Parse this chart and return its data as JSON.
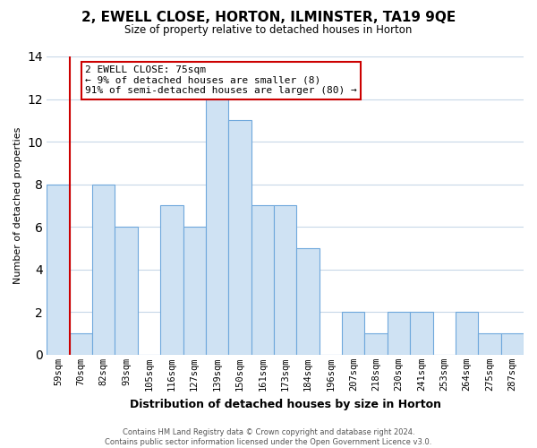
{
  "title": "2, EWELL CLOSE, HORTON, ILMINSTER, TA19 9QE",
  "subtitle": "Size of property relative to detached houses in Horton",
  "xlabel": "Distribution of detached houses by size in Horton",
  "ylabel": "Number of detached properties",
  "categories": [
    "59sqm",
    "70sqm",
    "82sqm",
    "93sqm",
    "105sqm",
    "116sqm",
    "127sqm",
    "139sqm",
    "150sqm",
    "161sqm",
    "173sqm",
    "184sqm",
    "196sqm",
    "207sqm",
    "218sqm",
    "230sqm",
    "241sqm",
    "253sqm",
    "264sqm",
    "275sqm",
    "287sqm"
  ],
  "values": [
    8,
    1,
    8,
    6,
    0,
    7,
    6,
    12,
    11,
    7,
    7,
    5,
    0,
    2,
    1,
    2,
    2,
    0,
    2,
    1,
    1
  ],
  "bar_color": "#cfe2f3",
  "bar_edge_color": "#6fa8dc",
  "subject_line_color": "#cc0000",
  "subject_line_index": 1,
  "annotation_line1": "2 EWELL CLOSE: 75sqm",
  "annotation_line2": "← 9% of detached houses are smaller (8)",
  "annotation_line3": "91% of semi-detached houses are larger (80) →",
  "annotation_box_color": "#ffffff",
  "annotation_box_edge": "#cc0000",
  "footer_text": "Contains HM Land Registry data © Crown copyright and database right 2024.\nContains public sector information licensed under the Open Government Licence v3.0.",
  "ylim": [
    0,
    14
  ],
  "yticks": [
    0,
    2,
    4,
    6,
    8,
    10,
    12,
    14
  ],
  "background_color": "#ffffff",
  "grid_color": "#c8d8e8"
}
